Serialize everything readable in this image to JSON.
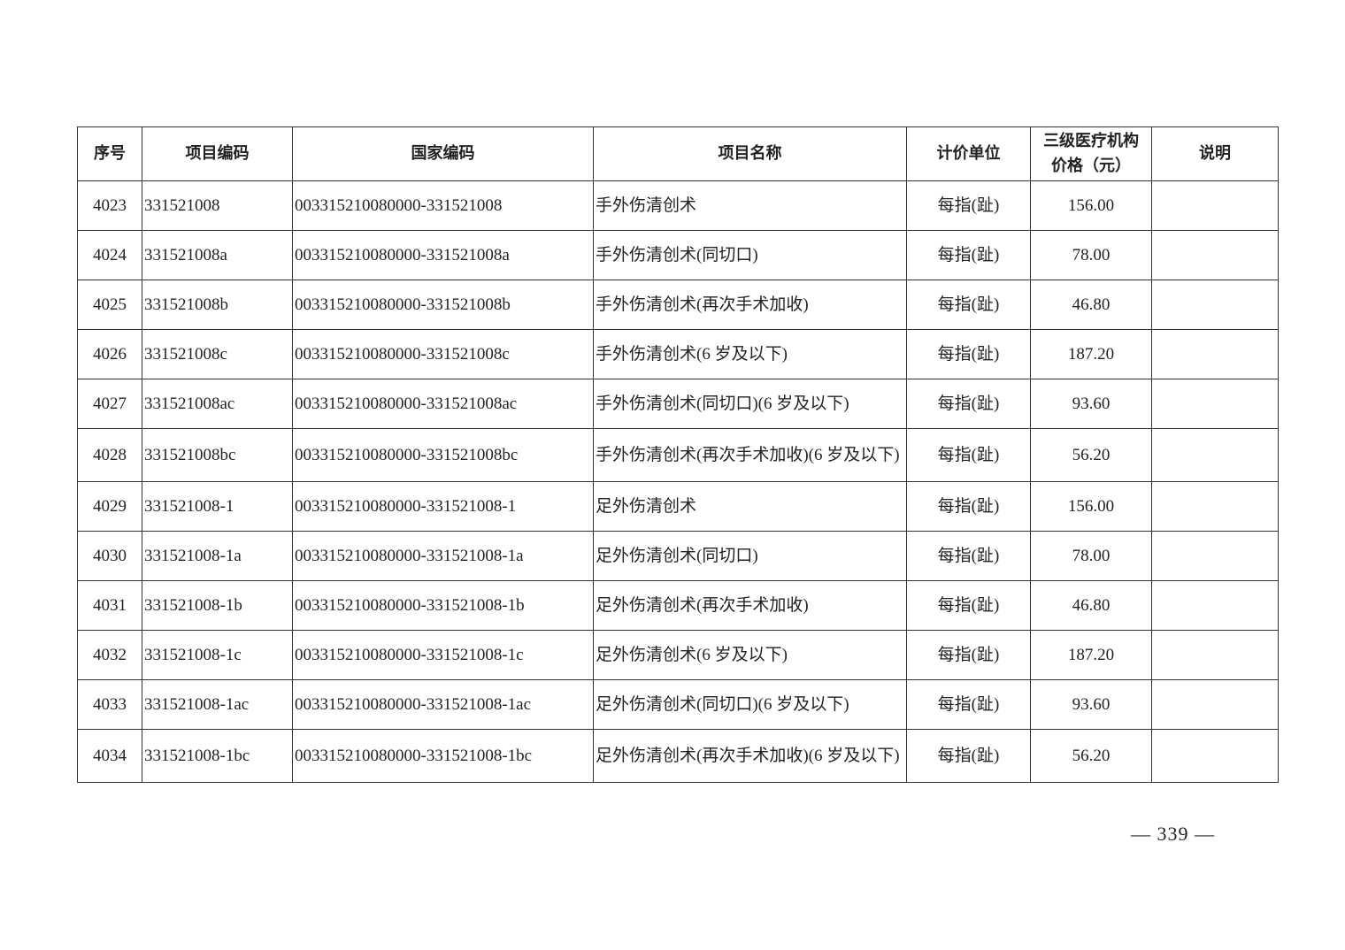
{
  "table": {
    "headers": [
      "序号",
      "项目编码",
      "国家编码",
      "项目名称",
      "计价单位",
      "三级医疗机构价格（元）",
      "说明"
    ],
    "header_price_line1": "三级医疗机构",
    "header_price_line2": "价格（元）",
    "rows": [
      {
        "no": "4023",
        "code": "331521008",
        "national": "003315210080000-331521008",
        "name": "手外伤清创术",
        "unit": "每指(趾)",
        "price": "156.00",
        "note": ""
      },
      {
        "no": "4024",
        "code": "331521008a",
        "national": "003315210080000-331521008a",
        "name": "手外伤清创术(同切口)",
        "unit": "每指(趾)",
        "price": "78.00",
        "note": ""
      },
      {
        "no": "4025",
        "code": "331521008b",
        "national": "003315210080000-331521008b",
        "name": "手外伤清创术(再次手术加收)",
        "unit": "每指(趾)",
        "price": "46.80",
        "note": ""
      },
      {
        "no": "4026",
        "code": "331521008c",
        "national": "003315210080000-331521008c",
        "name": "手外伤清创术(6 岁及以下)",
        "unit": "每指(趾)",
        "price": "187.20",
        "note": ""
      },
      {
        "no": "4027",
        "code": "331521008ac",
        "national": "003315210080000-331521008ac",
        "name": "手外伤清创术(同切口)(6 岁及以下)",
        "unit": "每指(趾)",
        "price": "93.60",
        "note": ""
      },
      {
        "no": "4028",
        "code": "331521008bc",
        "national": "003315210080000-331521008bc",
        "name": "手外伤清创术(再次手术加收)(6 岁及以下)",
        "unit": "每指(趾)",
        "price": "56.20",
        "note": ""
      },
      {
        "no": "4029",
        "code": "331521008-1",
        "national": "003315210080000-331521008-1",
        "name": "足外伤清创术",
        "unit": "每指(趾)",
        "price": "156.00",
        "note": ""
      },
      {
        "no": "4030",
        "code": "331521008-1a",
        "national": "003315210080000-331521008-1a",
        "name": "足外伤清创术(同切口)",
        "unit": "每指(趾)",
        "price": "78.00",
        "note": ""
      },
      {
        "no": "4031",
        "code": "331521008-1b",
        "national": "003315210080000-331521008-1b",
        "name": "足外伤清创术(再次手术加收)",
        "unit": "每指(趾)",
        "price": "46.80",
        "note": ""
      },
      {
        "no": "4032",
        "code": "331521008-1c",
        "national": "003315210080000-331521008-1c",
        "name": "足外伤清创术(6 岁及以下)",
        "unit": "每指(趾)",
        "price": "187.20",
        "note": ""
      },
      {
        "no": "4033",
        "code": "331521008-1ac",
        "national": "003315210080000-331521008-1ac",
        "name": "足外伤清创术(同切口)(6 岁及以下)",
        "unit": "每指(趾)",
        "price": "93.60",
        "note": ""
      },
      {
        "no": "4034",
        "code": "331521008-1bc",
        "national": "003315210080000-331521008-1bc",
        "name": "足外伤清创术(再次手术加收)(6 岁及以下)",
        "unit": "每指(趾)",
        "price": "56.20",
        "note": ""
      }
    ]
  },
  "page_number": "— 339 —"
}
